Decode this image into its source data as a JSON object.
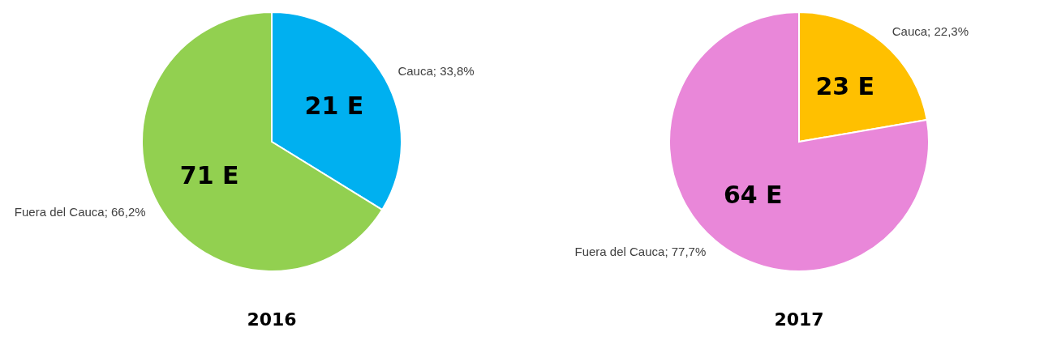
{
  "chart_data": [
    {
      "type": "pie",
      "title": "2016",
      "categories": [
        "Cauca",
        "Fuera del Cauca"
      ],
      "values": [
        33.8,
        66.2
      ],
      "colors": [
        "#00b0f0",
        "#92d050"
      ],
      "value_labels": [
        "33,8%",
        "66,2%"
      ],
      "legend": false,
      "annotations": [
        {
          "text": "21 E",
          "x": "Cauca"
        },
        {
          "text": "71 E",
          "x": "Fuera del Cauca"
        }
      ]
    },
    {
      "type": "pie",
      "title": "2017",
      "categories": [
        "Cauca",
        "Fuera del Cauca"
      ],
      "values": [
        22.3,
        77.7
      ],
      "colors": [
        "#ffc000",
        "#e987d9"
      ],
      "value_labels": [
        "22,3%",
        "77,7%"
      ],
      "legend": false,
      "annotations": [
        {
          "text": "23 E",
          "x": "Cauca"
        },
        {
          "text": "64 E",
          "x": "Fuera del Cauca"
        }
      ]
    }
  ]
}
